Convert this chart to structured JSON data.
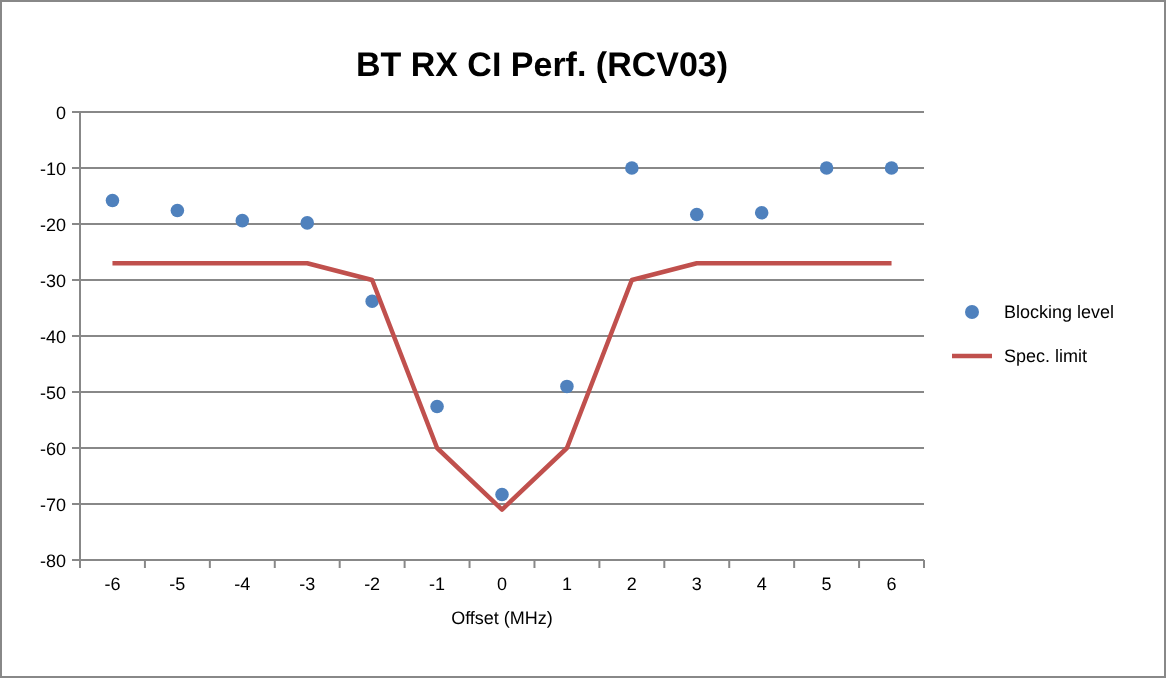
{
  "chart_data": {
    "type": "line",
    "title": "BT RX CI Perf. (RCV03)",
    "xlabel": "Offset  (MHz)",
    "categories": [
      "-6",
      "-5",
      "-4",
      "-3",
      "-2",
      "-1",
      "0",
      "1",
      "2",
      "3",
      "4",
      "5",
      "6"
    ],
    "series": [
      {
        "name": "Blocking level",
        "type": "scatter",
        "color": "#4f81bd",
        "marker": "circle",
        "values": [
          -15.8,
          -17.6,
          -19.4,
          -19.8,
          -33.8,
          -52.6,
          -68.3,
          -49,
          -10,
          -18.3,
          -18,
          -10,
          -10
        ]
      },
      {
        "name": "Spec. limit",
        "color": "#c0504d",
        "marker": "none",
        "line_style": "solid",
        "values": [
          -27,
          -27,
          -27,
          -27,
          -30,
          -60,
          -71,
          -60,
          -30,
          -27,
          -27,
          -27,
          -27
        ]
      }
    ],
    "ylim": [
      -80,
      0
    ],
    "yticks": [
      -80,
      -70,
      -60,
      -50,
      -40,
      -30,
      -20,
      -10,
      0
    ],
    "grid": "y",
    "legend": "right"
  }
}
